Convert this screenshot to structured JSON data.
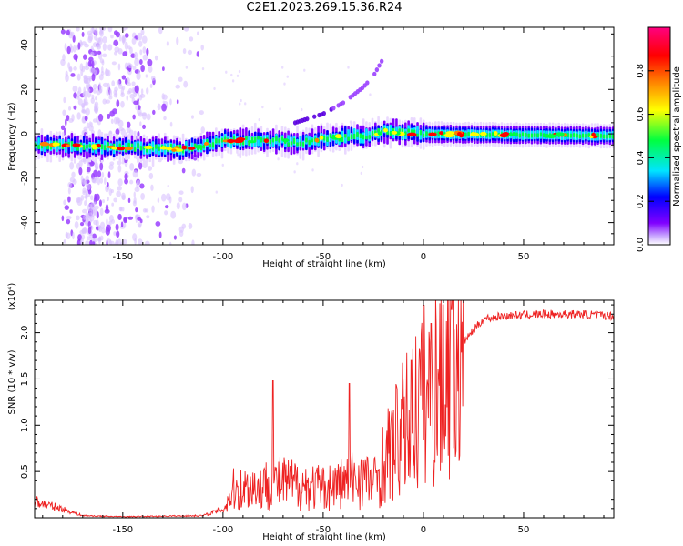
{
  "title": "C2E1.2023.269.15.36.R24",
  "chart_data": [
    {
      "type": "heatmap",
      "xlabel": "Height of straight line (km)",
      "ylabel": "Frequency (Hz)",
      "xlim": [
        -194,
        95
      ],
      "ylim": [
        -50,
        48
      ],
      "x_ticks": [
        -150,
        -100,
        -50,
        0,
        50
      ],
      "y_ticks": [
        -40,
        -20,
        0,
        20,
        40
      ],
      "x_tick_labels": [
        "-150",
        "-100",
        "-50",
        "0",
        "50"
      ],
      "y_tick_labels": [
        "-40",
        "-20",
        "0",
        "20",
        "40"
      ],
      "colorbar": {
        "label": "Normalized spectral amplitude",
        "range": [
          0,
          1
        ],
        "ticks": [
          0,
          0.2,
          0.4,
          0.6,
          0.8
        ],
        "tick_labels": [
          "0.0",
          "0.2",
          "0.4",
          "0.6",
          "0.8"
        ],
        "colors": [
          "#ffffff",
          "#8000ff",
          "#0000ff",
          "#00e5ff",
          "#00ff40",
          "#ffff00",
          "#ff8000",
          "#ff0000",
          "#ff0080"
        ]
      },
      "band_centerline": [
        {
          "x": -194,
          "y": -5
        },
        {
          "x": -150,
          "y": -6
        },
        {
          "x": -120,
          "y": -7
        },
        {
          "x": -100,
          "y": -3
        },
        {
          "x": -80,
          "y": -3
        },
        {
          "x": -60,
          "y": -4
        },
        {
          "x": -50,
          "y": -2
        },
        {
          "x": -30,
          "y": -1
        },
        {
          "x": -20,
          "y": 1
        },
        {
          "x": 0,
          "y": 0
        },
        {
          "x": 95,
          "y": -1
        }
      ],
      "rising_trace": [
        {
          "x": -64,
          "y": 5
        },
        {
          "x": -50,
          "y": 9
        },
        {
          "x": -40,
          "y": 14
        },
        {
          "x": -30,
          "y": 21
        },
        {
          "x": -25,
          "y": 26
        },
        {
          "x": -20,
          "y": 34
        }
      ]
    },
    {
      "type": "line",
      "xlabel": "Height of straight line (km)",
      "ylabel": "SNR (10 * v/v)",
      "scale_note": "(x10⁴)",
      "xlim": [
        -194,
        95
      ],
      "ylim": [
        0,
        23500
      ],
      "x_ticks": [
        -150,
        -100,
        -50,
        0,
        50
      ],
      "y_ticks": [
        5000,
        10000,
        15000,
        20000
      ],
      "x_tick_labels": [
        "-150",
        "-100",
        "-50",
        "0",
        "50"
      ],
      "y_tick_labels": [
        "0.5",
        "1.0",
        "1.5",
        "2.0"
      ],
      "series_color": "#ee2222",
      "profile": [
        {
          "x": -194,
          "y": 1500
        },
        {
          "x": -180,
          "y": 800
        },
        {
          "x": -170,
          "y": 200
        },
        {
          "x": -150,
          "y": 100
        },
        {
          "x": -110,
          "y": 200
        },
        {
          "x": -100,
          "y": 800
        },
        {
          "x": -95,
          "y": 3000
        },
        {
          "x": -80,
          "y": 3500
        },
        {
          "x": -70,
          "y": 3800
        },
        {
          "x": -60,
          "y": 3500
        },
        {
          "x": -50,
          "y": 3200
        },
        {
          "x": -40,
          "y": 3800
        },
        {
          "x": -30,
          "y": 4500
        },
        {
          "x": -25,
          "y": 3500
        },
        {
          "x": -20,
          "y": 6000
        },
        {
          "x": -10,
          "y": 9500
        },
        {
          "x": 0,
          "y": 13000
        },
        {
          "x": 10,
          "y": 16000
        },
        {
          "x": 20,
          "y": 19000
        },
        {
          "x": 30,
          "y": 21500
        },
        {
          "x": 40,
          "y": 21800
        },
        {
          "x": 60,
          "y": 22000
        },
        {
          "x": 80,
          "y": 22000
        },
        {
          "x": 95,
          "y": 21800
        }
      ],
      "spikes": [
        {
          "x": -75,
          "y": 14800
        },
        {
          "x": -37,
          "y": 14500
        },
        {
          "x": -6,
          "y": 17000
        },
        {
          "x": 4,
          "y": 21000
        },
        {
          "x": 10,
          "y": 23000
        },
        {
          "x": 14,
          "y": 22500
        }
      ]
    }
  ]
}
